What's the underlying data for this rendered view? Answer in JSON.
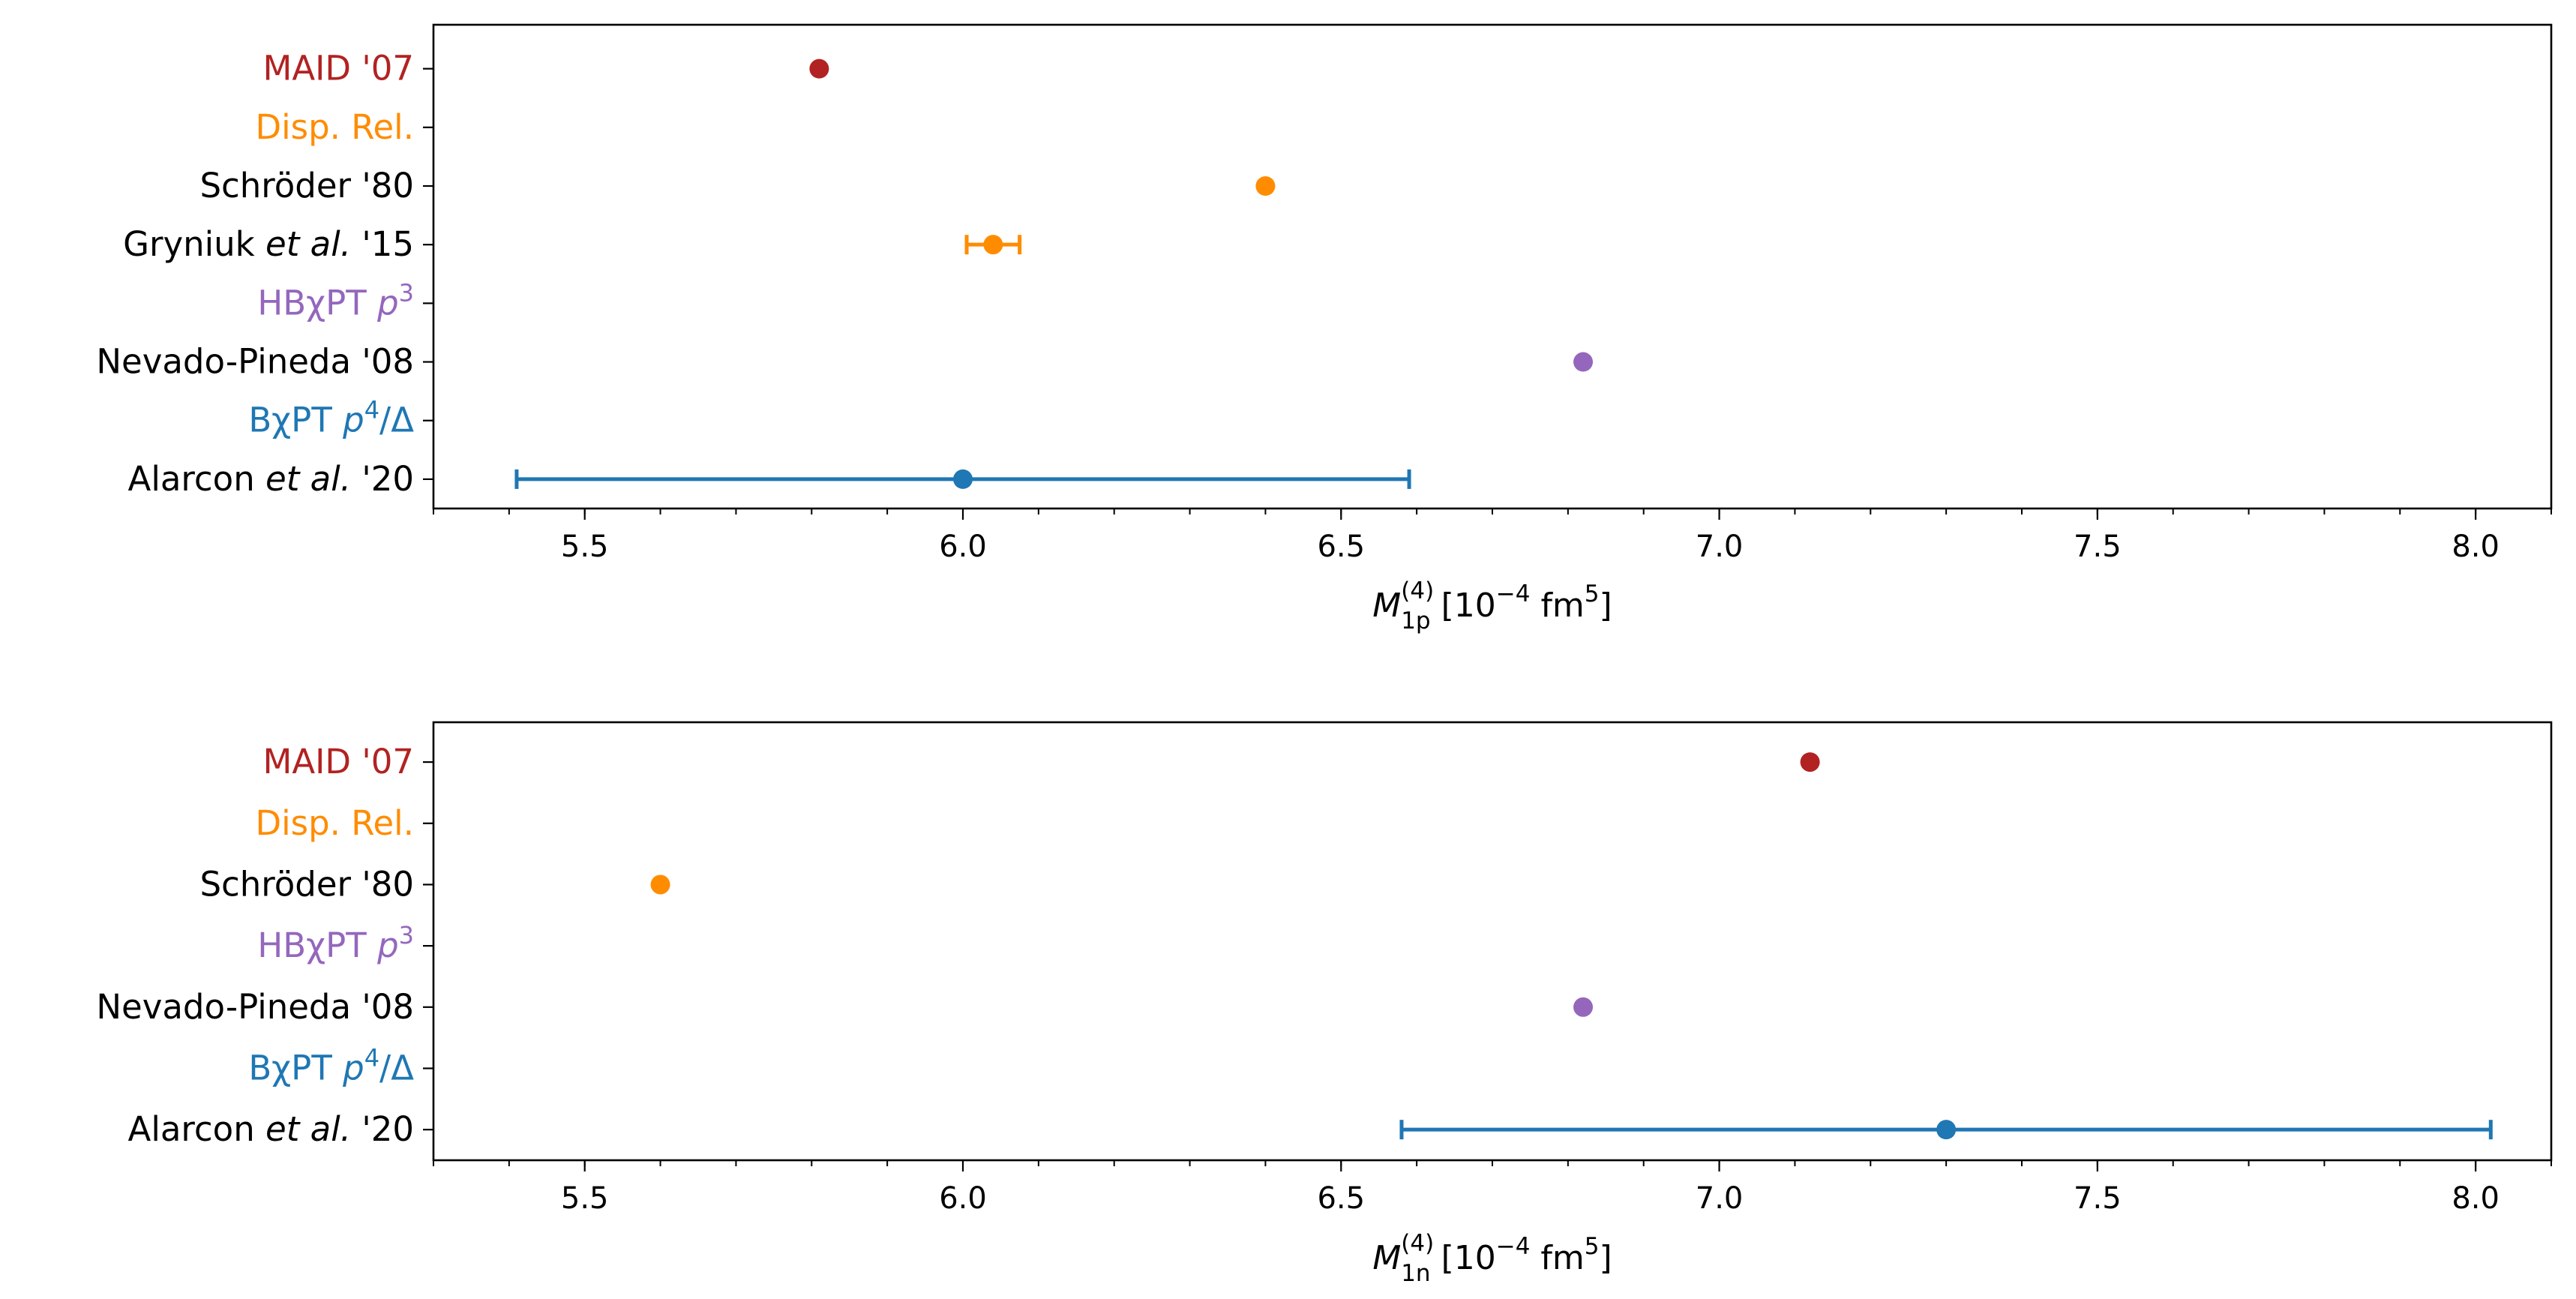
{
  "chart_data": [
    {
      "type": "errorbar",
      "xlabel": {
        "symbol": "M",
        "superscript": "(4)",
        "subscript": "1p",
        "unit_open": "[10",
        "unit_exp": "−4",
        "unit_mid": " fm",
        "unit_exp2": "5",
        "unit_close": "]"
      },
      "xlim": [
        5.3,
        8.1
      ],
      "xticks": [
        "5.5",
        "6.0",
        "6.5",
        "7.0",
        "7.5",
        "8.0"
      ],
      "xtick_values": [
        5.5,
        6.0,
        6.5,
        7.0,
        7.5,
        8.0
      ],
      "minor_step": 0.1,
      "ylim": [
        -0.5,
        7.75
      ],
      "labels": [
        {
          "text": "MAID '07",
          "color": "#b22222",
          "y": 7
        },
        {
          "text": "Disp. Rel.",
          "color": "#ff8c00",
          "y": 6
        },
        {
          "text": "Schröder '80",
          "color": "#000000",
          "y": 5
        },
        {
          "text": "Gryniuk et al. '15",
          "color": "#000000",
          "y": 4,
          "italic_part": "et al.",
          "prefix": "Gryniuk ",
          "suffix": " '15"
        },
        {
          "text": "HBχPT p3",
          "color": "#9467bd",
          "y": 3,
          "prefix": "HBχPT ",
          "italic_part": "p",
          "sup": "3"
        },
        {
          "text": "Nevado-Pineda '08",
          "color": "#000000",
          "y": 2
        },
        {
          "text": "BχPT p4/Δ",
          "color": "#1f77b4",
          "y": 1,
          "prefix": "BχPT ",
          "italic_part": "p",
          "sup": "4",
          "suffix": "/Δ"
        },
        {
          "text": "Alarcon et al. '20",
          "color": "#000000",
          "y": 0,
          "prefix": "Alarcon ",
          "italic_part": "et al.",
          "suffix": " '20"
        }
      ],
      "points": [
        {
          "name": "MAID '07",
          "x": 5.81,
          "y": 7,
          "color": "#b22222"
        },
        {
          "name": "Schröder '80",
          "x": 6.4,
          "y": 5,
          "color": "#ff8c00"
        },
        {
          "name": "Gryniuk et al. '15",
          "x": 6.04,
          "y": 4,
          "xerr_low": 0.035,
          "xerr_high": 0.035,
          "color": "#ff8c00"
        },
        {
          "name": "Nevado-Pineda '08",
          "x": 6.82,
          "y": 2,
          "color": "#9467bd"
        },
        {
          "name": "Alarcon et al. '20",
          "x": 6.0,
          "y": 0,
          "xerr_low": 0.59,
          "xerr_high": 0.59,
          "color": "#1f77b4"
        }
      ]
    },
    {
      "type": "errorbar",
      "xlabel": {
        "symbol": "M",
        "superscript": "(4)",
        "subscript": "1n",
        "unit_open": "[10",
        "unit_exp": "−4",
        "unit_mid": " fm",
        "unit_exp2": "5",
        "unit_close": "]"
      },
      "xlim": [
        5.3,
        8.1
      ],
      "xticks": [
        "5.5",
        "6.0",
        "6.5",
        "7.0",
        "7.5",
        "8.0"
      ],
      "xtick_values": [
        5.5,
        6.0,
        6.5,
        7.0,
        7.5,
        8.0
      ],
      "minor_step": 0.1,
      "ylim": [
        -0.5,
        6.65
      ],
      "labels": [
        {
          "text": "MAID '07",
          "color": "#b22222",
          "y": 6
        },
        {
          "text": "Disp. Rel.",
          "color": "#ff8c00",
          "y": 5
        },
        {
          "text": "Schröder '80",
          "color": "#000000",
          "y": 4
        },
        {
          "text": "HBχPT p3",
          "color": "#9467bd",
          "y": 3,
          "prefix": "HBχPT ",
          "italic_part": "p",
          "sup": "3"
        },
        {
          "text": "Nevado-Pineda '08",
          "color": "#000000",
          "y": 2
        },
        {
          "text": "BχPT p4/Δ",
          "color": "#1f77b4",
          "y": 1,
          "prefix": "BχPT ",
          "italic_part": "p",
          "sup": "4",
          "suffix": "/Δ"
        },
        {
          "text": "Alarcon et al. '20",
          "color": "#000000",
          "y": 0,
          "prefix": "Alarcon ",
          "italic_part": "et al.",
          "suffix": " '20"
        }
      ],
      "points": [
        {
          "name": "MAID '07",
          "x": 7.12,
          "y": 6,
          "color": "#b22222"
        },
        {
          "name": "Schröder '80",
          "x": 5.6,
          "y": 4,
          "color": "#ff8c00"
        },
        {
          "name": "Nevado-Pineda '08",
          "x": 6.82,
          "y": 2,
          "color": "#9467bd"
        },
        {
          "name": "Alarcon et al. '20",
          "x": 7.3,
          "y": 0,
          "xerr_low": 0.72,
          "xerr_high": 0.72,
          "color": "#1f77b4"
        }
      ]
    }
  ]
}
